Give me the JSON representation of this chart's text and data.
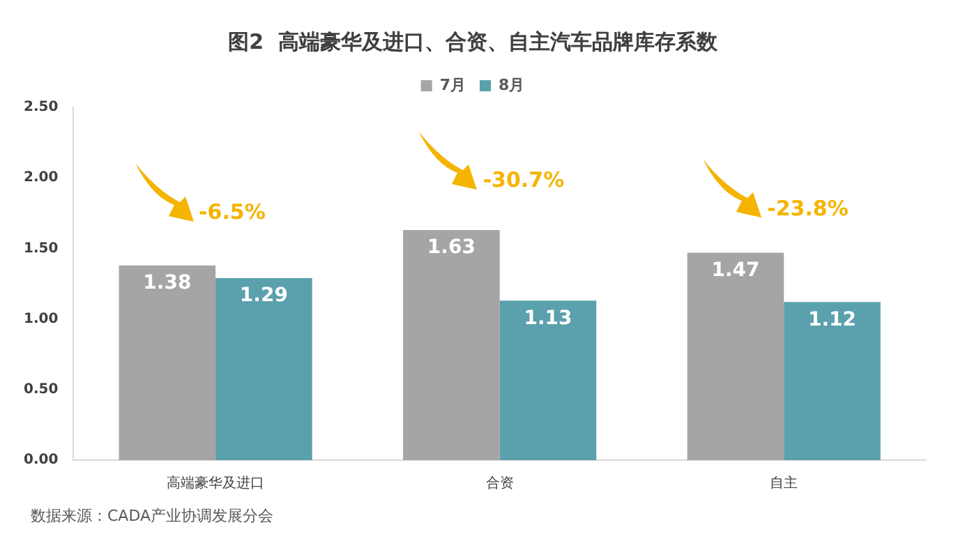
{
  "chart_data": {
    "type": "bar",
    "title": "图2  高端豪华及进口、合资、自主汽车品牌库存系数",
    "categories": [
      "高端豪华及进口",
      "合资",
      "自主"
    ],
    "series": [
      {
        "name": "7月",
        "color": "#a5a5a5",
        "values": [
          1.38,
          1.63,
          1.47
        ]
      },
      {
        "name": "8月",
        "color": "#5aa0ad",
        "values": [
          1.29,
          1.13,
          1.12
        ]
      }
    ],
    "ylim": [
      0,
      2.5
    ],
    "yticks": [
      {
        "value": 0,
        "label": "0.00"
      },
      {
        "value": 0.5,
        "label": "0.50"
      },
      {
        "value": 1,
        "label": "1.00"
      },
      {
        "value": 1.5,
        "label": "1.50"
      },
      {
        "value": 2,
        "label": "2.00"
      },
      {
        "value": 2.5,
        "label": "2.50"
      }
    ],
    "grid": false,
    "legend": "top",
    "data_labels": true,
    "annotations": [
      "-6.5%",
      "-30.7%",
      "-23.8%",
      "数据来源：CADA产业协调发展分会"
    ]
  }
}
